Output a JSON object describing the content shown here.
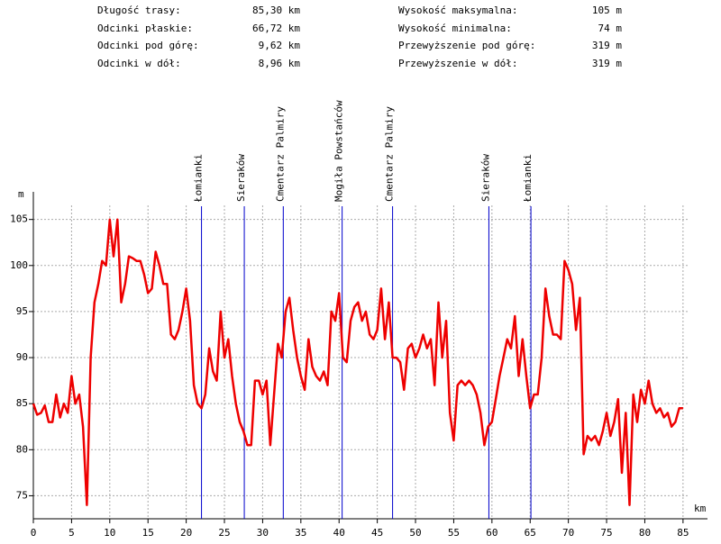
{
  "stats": [
    {
      "label": "Długość trasy:",
      "value": "85,30 km"
    },
    {
      "label": "Odcinki płaskie:",
      "value": "66,72 km"
    },
    {
      "label": "Odcinki pod górę:",
      "value": "9,62 km"
    },
    {
      "label": "Odcinki w dół:",
      "value": "8,96 km"
    },
    {
      "label": "Wysokość maksymalna:",
      "value": "105 m"
    },
    {
      "label": "Wysokość minimalna:",
      "value": "74 m"
    },
    {
      "label": "Przewyższenie pod górę:",
      "value": "319 m"
    },
    {
      "label": "Przewyższenie w dół:",
      "value": "319 m"
    }
  ],
  "chart_data": {
    "type": "line",
    "xlabel": "km",
    "ylabel": "m",
    "xlim": [
      0,
      88.2
    ],
    "ylim": [
      72.5,
      108
    ],
    "xticks": [
      0,
      5,
      10,
      15,
      20,
      25,
      30,
      35,
      40,
      45,
      50,
      55,
      60,
      65,
      70,
      75,
      80,
      85
    ],
    "yticks": [
      75,
      80,
      85,
      90,
      95,
      100,
      105
    ],
    "grid": true,
    "markers": [
      {
        "label": "Łomianki",
        "x": 22.0
      },
      {
        "label": "Sieraków",
        "x": 27.6
      },
      {
        "label": "Cmentarz Palmiry",
        "x": 32.7
      },
      {
        "label": "Mogiła Powstańców",
        "x": 40.4
      },
      {
        "label": "Cmentarz Palmiry",
        "x": 47.0
      },
      {
        "label": "Sieraków",
        "x": 59.6
      },
      {
        "label": "Łomianki",
        "x": 65.1
      }
    ],
    "marker_color": "#0000cc",
    "x": [
      0,
      0.5,
      1,
      1.5,
      2,
      2.5,
      3,
      3.5,
      4,
      4.5,
      5,
      5.5,
      6,
      6.5,
      7,
      7.5,
      8,
      8.5,
      9,
      9.5,
      10,
      10.5,
      11,
      11.5,
      12,
      12.5,
      13,
      13.5,
      14,
      14.5,
      15,
      15.5,
      16,
      16.5,
      17,
      17.5,
      18,
      18.5,
      19,
      19.5,
      20,
      20.5,
      21,
      21.5,
      22,
      22.5,
      23,
      23.5,
      24,
      24.5,
      25,
      25.5,
      26,
      26.5,
      27,
      27.5,
      28,
      28.5,
      29,
      29.5,
      30,
      30.5,
      31,
      31.5,
      32,
      32.5,
      33,
      33.5,
      34,
      34.5,
      35,
      35.5,
      36,
      36.5,
      37,
      37.5,
      38,
      38.5,
      39,
      39.5,
      40,
      40.5,
      41,
      41.5,
      42,
      42.5,
      43,
      43.5,
      44,
      44.5,
      45,
      45.5,
      46,
      46.5,
      47,
      47.5,
      48,
      48.5,
      49,
      49.5,
      50,
      50.5,
      51,
      51.5,
      52,
      52.5,
      53,
      53.5,
      54,
      54.5,
      55,
      55.5,
      56,
      56.5,
      57,
      57.5,
      58,
      58.5,
      59,
      59.5,
      60,
      60.5,
      61,
      61.5,
      62,
      62.5,
      63,
      63.5,
      64,
      64.5,
      65,
      65.5,
      66,
      66.5,
      67,
      67.5,
      68,
      68.5,
      69,
      69.5,
      70,
      70.5,
      71,
      71.5,
      72,
      72.5,
      73,
      73.5,
      74,
      74.5,
      75,
      75.5,
      76,
      76.5,
      77,
      77.5,
      78,
      78.5,
      79,
      79.5,
      80,
      80.5,
      81,
      81.5,
      82,
      82.5,
      83,
      83.5,
      84,
      84.5,
      85
    ],
    "series": [
      {
        "color": "#ee0000",
        "values": [
          85,
          83.8,
          84,
          84.8,
          83,
          83,
          86,
          83.5,
          85,
          84,
          88,
          85,
          86,
          82.5,
          74,
          90,
          96,
          98,
          100.5,
          100,
          105,
          101,
          105,
          96,
          98,
          101,
          100.8,
          100.5,
          100.5,
          99,
          97,
          97.5,
          101.5,
          100,
          98,
          98,
          92.5,
          92,
          93,
          95,
          97.5,
          94,
          87,
          85,
          84.5,
          86,
          91,
          88.5,
          87.5,
          95,
          90,
          92,
          88,
          85,
          83,
          82,
          80.5,
          80.5,
          87.5,
          87.5,
          86,
          87.5,
          80.5,
          86,
          91.5,
          90,
          95,
          96.5,
          93,
          90,
          88,
          86.5,
          92,
          89,
          88,
          87.5,
          88.5,
          87,
          95,
          94,
          97,
          90,
          89.5,
          94,
          95.5,
          96,
          94,
          95,
          92.5,
          92,
          93,
          97.5,
          92,
          96,
          90,
          90,
          89.5,
          86.5,
          91,
          91.5,
          90,
          91,
          92.5,
          91,
          92,
          87,
          96,
          90,
          94,
          84,
          81,
          87,
          87.5,
          87,
          87.5,
          87,
          86,
          84,
          80.5,
          82.5,
          83,
          85.5,
          88,
          90,
          92,
          91,
          94.5,
          88,
          92,
          88,
          84.5,
          86,
          86,
          90,
          97.5,
          94.5,
          92.5,
          92.5,
          92,
          100.5,
          99.5,
          98,
          93,
          96.5,
          79.5,
          81.5,
          81,
          81.5,
          80.5,
          82,
          84,
          81.5,
          83,
          85.5,
          77.5,
          84,
          74,
          86,
          83,
          86.5,
          85,
          87.5,
          85,
          84,
          84.5,
          83.5,
          84,
          82.5,
          83,
          84.5,
          84.5
        ]
      }
    ]
  }
}
